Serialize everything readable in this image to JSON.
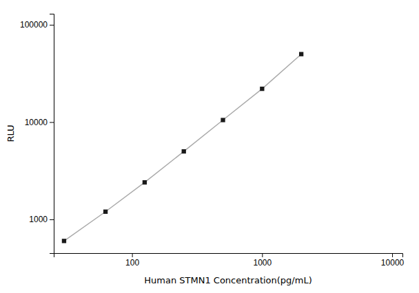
{
  "chart_data": {
    "type": "line",
    "x": [
      30,
      62.5,
      125,
      250,
      500,
      1000,
      2000
    ],
    "values": [
      600,
      1200,
      2400,
      5000,
      10500,
      22000,
      50000
    ],
    "xlabel": "Human STMN1 Concentration(pg/mL)",
    "ylabel": "RLU",
    "xlim": [
      25,
      12000
    ],
    "ylim": [
      450,
      130000
    ],
    "xticks": [
      100,
      1000,
      10000
    ],
    "yticks": [
      1000,
      10000,
      100000
    ],
    "log": true,
    "grid": false,
    "color": "#aaaaaa",
    "colors": [
      "#1a1a1a",
      "#1a1a1a",
      "#1a1a1a",
      "#1a1a1a",
      "#1a1a1a",
      "#1a1a1a",
      "#1a1a1a"
    ],
    "marker": "square",
    "line_style": "solid"
  }
}
